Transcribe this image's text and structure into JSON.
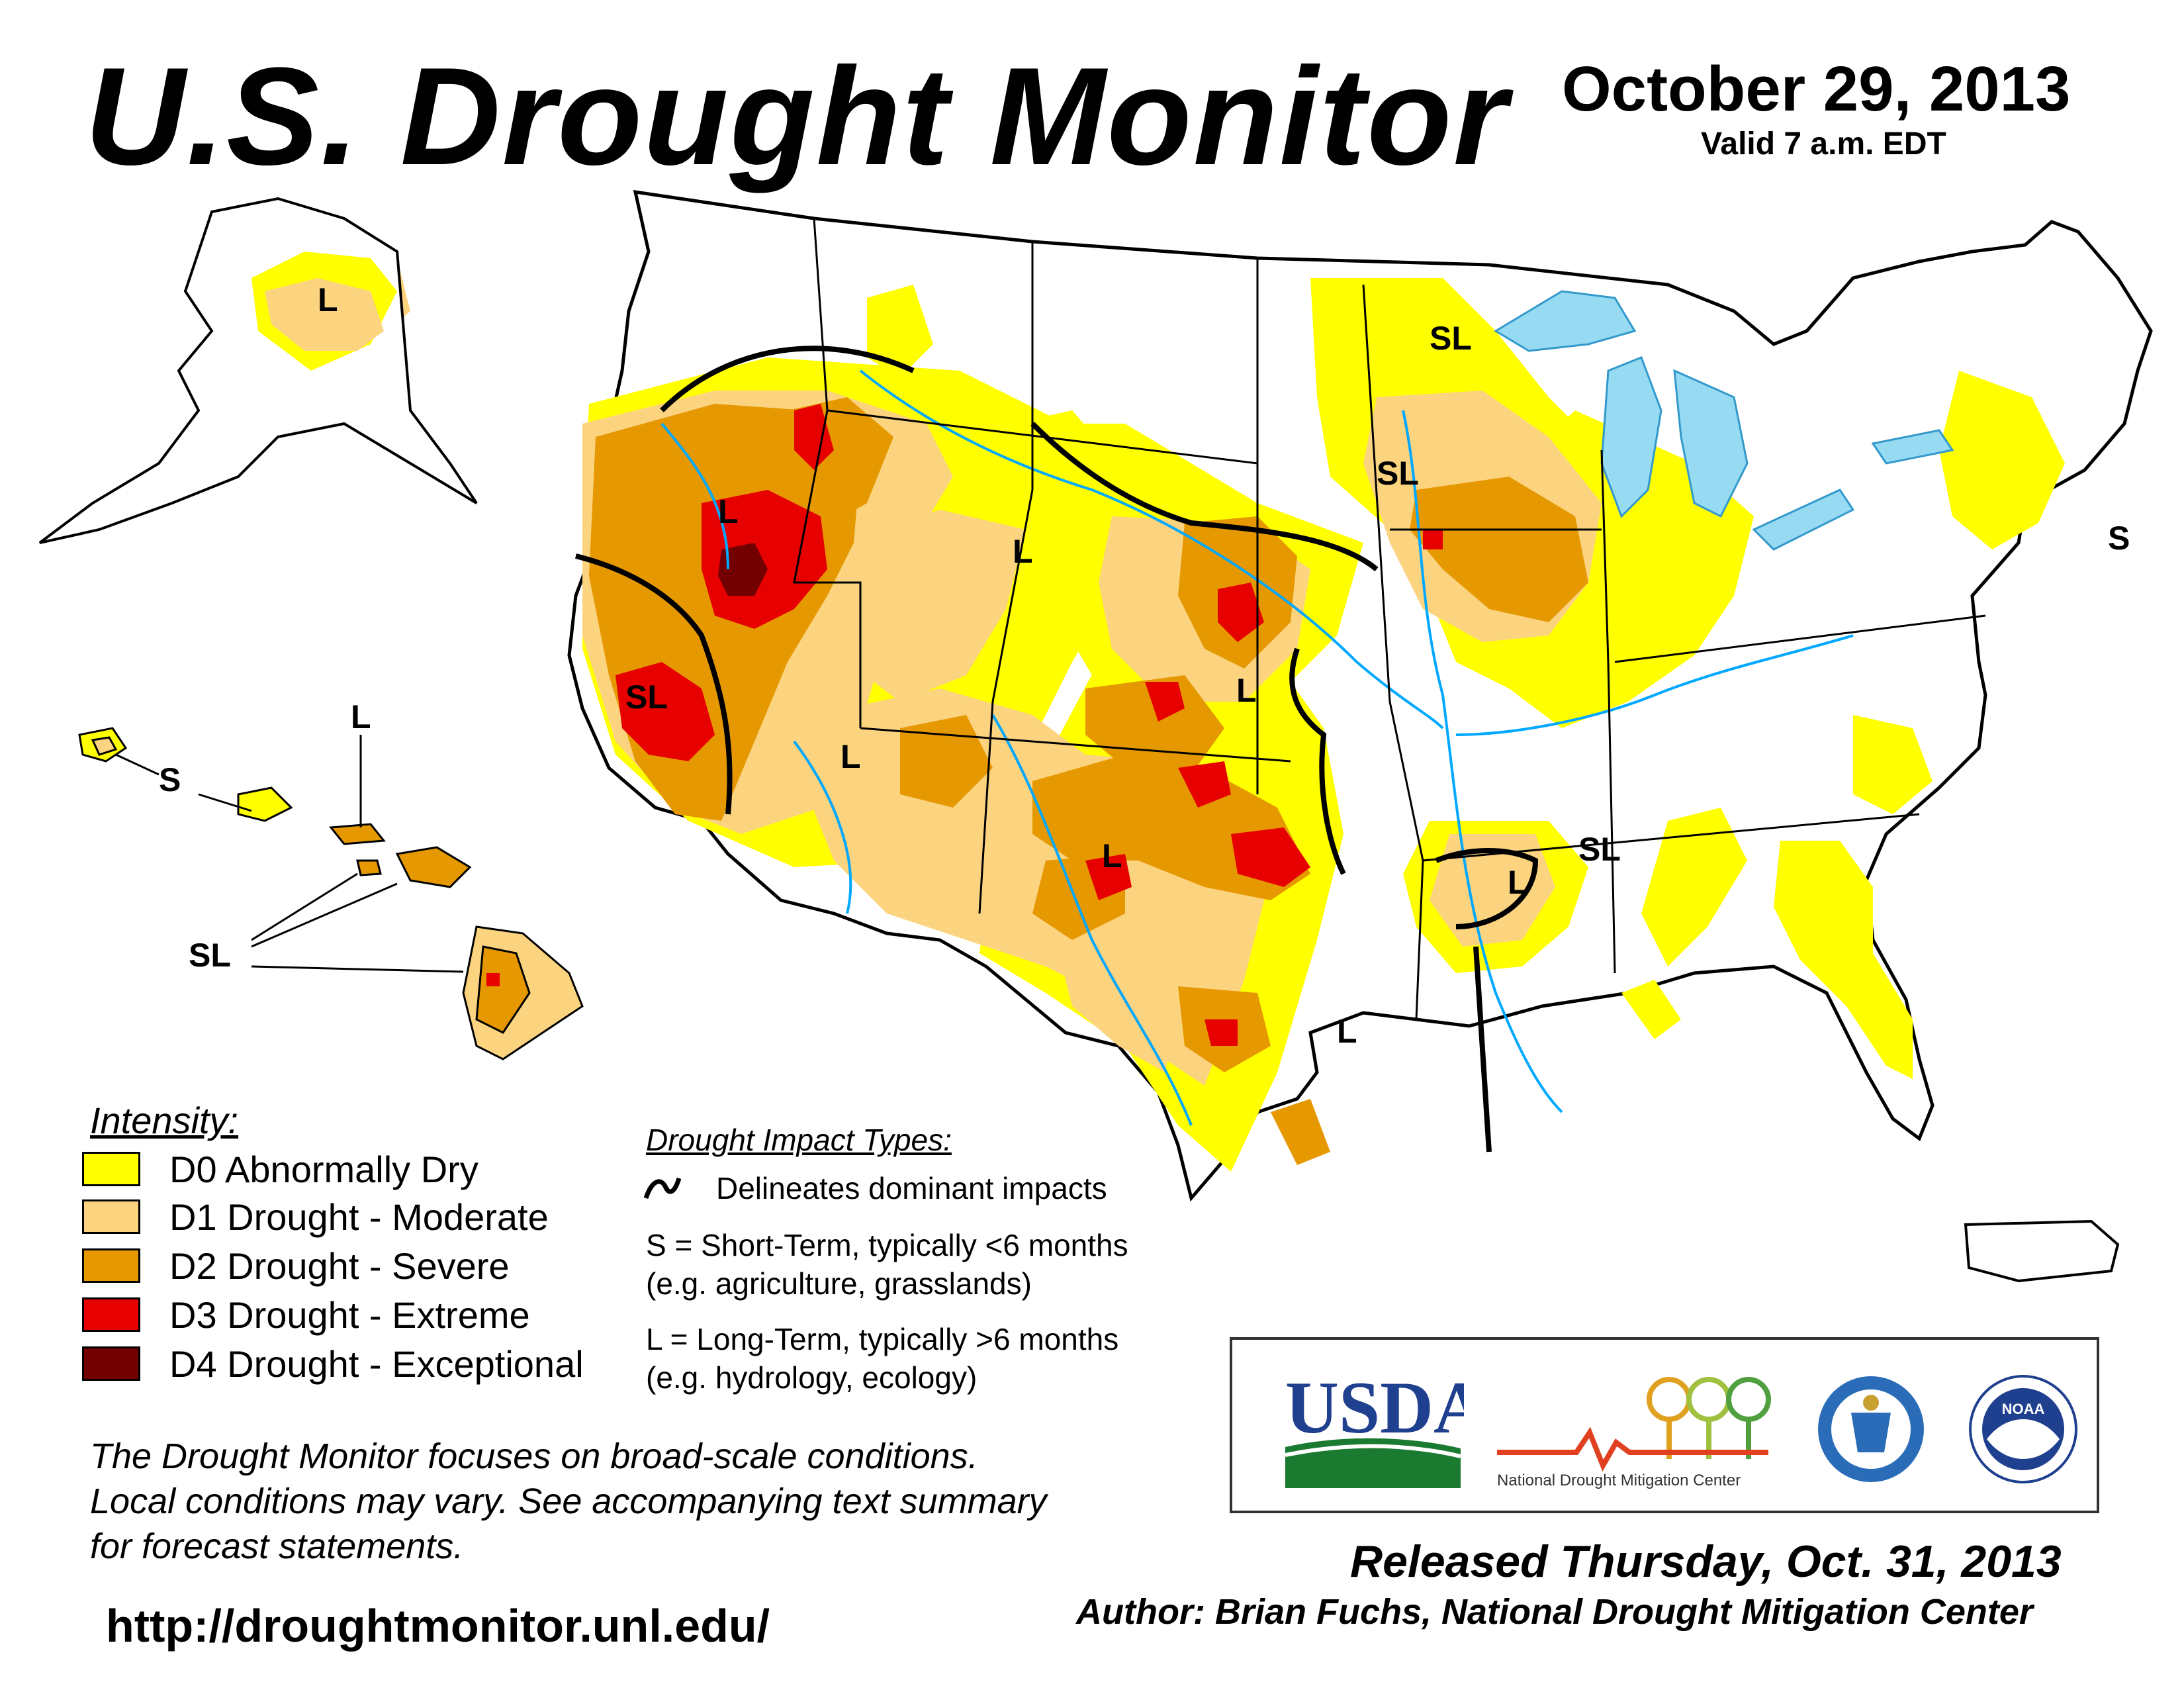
{
  "header": {
    "title": "U.S. Drought Monitor",
    "date": "October 29, 2013",
    "valid": "Valid 7 a.m. EDT"
  },
  "colors": {
    "d0": "#ffff00",
    "d1": "#fcd37f",
    "d2": "#e69800",
    "d3": "#e60000",
    "d4": "#730000",
    "water": "#00a8ff",
    "lakes": "#97dbf2",
    "state_border": "#000000",
    "county_border": "#9c9c9c"
  },
  "legend": {
    "title": "Intensity:",
    "items": [
      {
        "code": "D0",
        "label": "D0 Abnormally Dry"
      },
      {
        "code": "D1",
        "label": "D1 Drought - Moderate"
      },
      {
        "code": "D2",
        "label": "D2 Drought - Severe"
      },
      {
        "code": "D3",
        "label": "D3 Drought - Extreme"
      },
      {
        "code": "D4",
        "label": "D4 Drought - Exceptional"
      }
    ]
  },
  "impacts": {
    "title": "Drought Impact Types:",
    "delineates": "Delineates dominant impacts",
    "short_line1": "S = Short-Term, typically <6 months",
    "short_line2": "(e.g. agriculture, grasslands)",
    "long_line1": "L = Long-Term, typically >6 months",
    "long_line2": "(e.g. hydrology, ecology)"
  },
  "map_labels": {
    "alaska": "L",
    "hawaii_l": "L",
    "hawaii_s": "S",
    "hawaii_sl": "SL",
    "west_coast_sl": "SL",
    "great_basin_l": "L",
    "rockies_l": "L",
    "southwest_l": "L",
    "four_corners_l": "L",
    "plains_l": "L",
    "texas_l": "L",
    "north_dakota_sl": "SL",
    "minnesota_sl": "SL",
    "mid_south_sl": "SL",
    "arkansas_l": "L",
    "northeast_s": "S"
  },
  "logos": {
    "usda": "USDA",
    "ndmc": "National Drought Mitigation Center",
    "noaa": "NOAA"
  },
  "disclaimer": {
    "line1": "The Drought Monitor focuses on broad-scale conditions.",
    "line2": "Local conditions may vary. See accompanying text summary",
    "line3": "for forecast statements."
  },
  "url": "http://droughtmonitor.unl.edu/",
  "released": "Released Thursday, Oct. 31, 2013",
  "author": "Author: Brian Fuchs, National Drought Mitigation Center"
}
